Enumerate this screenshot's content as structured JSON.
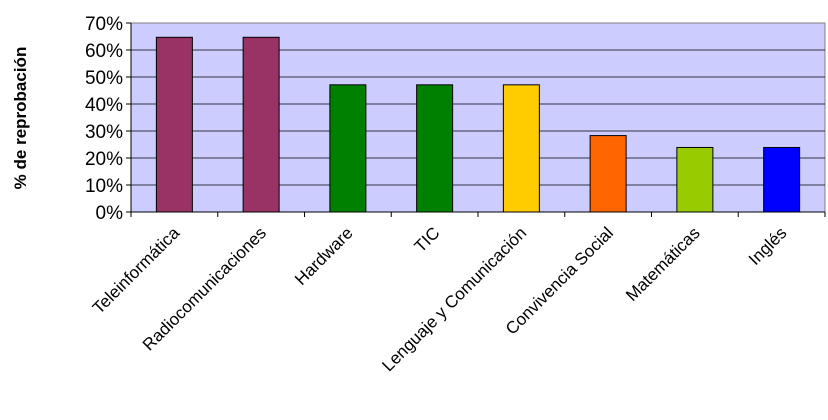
{
  "chart_data": {
    "type": "bar",
    "title": "",
    "xlabel": "",
    "ylabel": "% de reprobación",
    "ylim": [
      0,
      70
    ],
    "yticks": [
      "0%",
      "10%",
      "20%",
      "30%",
      "40%",
      "50%",
      "60%",
      "70%"
    ],
    "ytick_values": [
      0,
      10,
      20,
      30,
      40,
      50,
      60,
      70
    ],
    "grid": true,
    "legend": "none",
    "plot_background": "#ccccff",
    "categories": [
      "Teleinformática",
      "Radiocomunicaciones",
      "Hardware",
      "TIC",
      "Lenguaje y Comunicación",
      "Convivencia Social",
      "Matemáticas",
      "Inglés"
    ],
    "values": [
      64.7,
      64.7,
      47.1,
      47.1,
      47.1,
      28.3,
      23.9,
      23.9
    ],
    "colors": [
      "#993366",
      "#993366",
      "#008000",
      "#008000",
      "#ffcc00",
      "#ff6600",
      "#99cc00",
      "#0000ff"
    ]
  }
}
